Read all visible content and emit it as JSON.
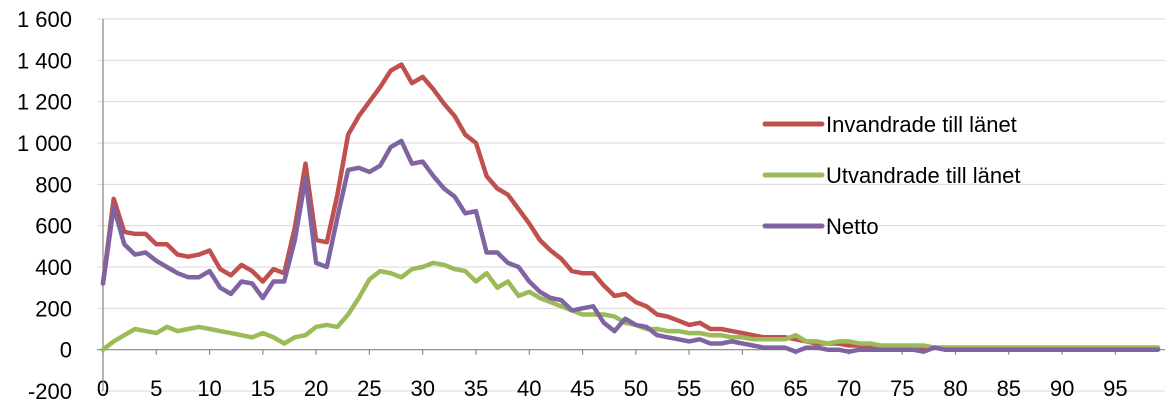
{
  "chart_data": {
    "type": "line",
    "title": "",
    "xlabel": "",
    "ylabel": "",
    "xlim": [
      0,
      99
    ],
    "ylim": [
      -200,
      1600
    ],
    "y_ticks": [
      -200,
      0,
      200,
      400,
      600,
      800,
      1000,
      1200,
      1400,
      1600
    ],
    "y_tick_labels": [
      "-200",
      "0",
      "200",
      "400",
      "600",
      "800",
      "1 000",
      "1 200",
      "1 400",
      "1 600"
    ],
    "x_ticks": [
      0,
      5,
      10,
      15,
      20,
      25,
      30,
      35,
      40,
      45,
      50,
      55,
      60,
      65,
      70,
      75,
      80,
      85,
      90,
      95
    ],
    "x_tick_labels": [
      "0",
      "5",
      "10",
      "15",
      "20",
      "25",
      "30",
      "35",
      "40",
      "45",
      "50",
      "55",
      "60",
      "65",
      "70",
      "75",
      "80",
      "85",
      "90",
      "95"
    ],
    "grid": true,
    "legend_position": "right",
    "x": [
      0,
      1,
      2,
      3,
      4,
      5,
      6,
      7,
      8,
      9,
      10,
      11,
      12,
      13,
      14,
      15,
      16,
      17,
      18,
      19,
      20,
      21,
      22,
      23,
      24,
      25,
      26,
      27,
      28,
      29,
      30,
      31,
      32,
      33,
      34,
      35,
      36,
      37,
      38,
      39,
      40,
      41,
      42,
      43,
      44,
      45,
      46,
      47,
      48,
      49,
      50,
      51,
      52,
      53,
      54,
      55,
      56,
      57,
      58,
      59,
      60,
      61,
      62,
      63,
      64,
      65,
      66,
      67,
      68,
      69,
      70,
      71,
      72,
      73,
      74,
      75,
      76,
      77,
      78,
      79,
      80,
      81,
      82,
      83,
      84,
      85,
      86,
      87,
      88,
      89,
      90,
      91,
      92,
      93,
      94,
      95,
      96,
      97,
      98,
      99
    ],
    "series": [
      {
        "name": "Invandrade till länet",
        "color": "#c0504d",
        "values": [
          320,
          730,
          570,
          560,
          560,
          510,
          510,
          460,
          450,
          460,
          480,
          390,
          360,
          410,
          380,
          330,
          390,
          370,
          590,
          900,
          530,
          520,
          750,
          1040,
          1130,
          1200,
          1270,
          1350,
          1380,
          1290,
          1320,
          1260,
          1190,
          1130,
          1040,
          1000,
          840,
          780,
          750,
          680,
          610,
          530,
          480,
          440,
          380,
          370,
          370,
          310,
          260,
          270,
          230,
          210,
          170,
          160,
          140,
          120,
          130,
          100,
          100,
          90,
          80,
          70,
          60,
          60,
          60,
          50,
          40,
          30,
          30,
          30,
          20,
          20,
          20,
          10,
          10,
          10,
          10,
          10,
          10,
          10,
          10,
          10,
          10,
          10,
          10,
          10,
          10,
          10,
          10,
          10,
          10,
          10,
          10,
          10,
          10,
          10,
          10,
          10,
          10,
          10
        ],
        "label_x": 826
      },
      {
        "name": "Utvandrade till länet",
        "color": "#9bbb59",
        "values": [
          0,
          40,
          70,
          100,
          90,
          80,
          110,
          90,
          100,
          110,
          100,
          90,
          80,
          70,
          60,
          80,
          60,
          30,
          60,
          70,
          110,
          120,
          110,
          170,
          250,
          340,
          380,
          370,
          350,
          390,
          400,
          420,
          410,
          390,
          380,
          330,
          370,
          300,
          330,
          260,
          280,
          250,
          230,
          210,
          190,
          170,
          170,
          170,
          160,
          130,
          120,
          100,
          100,
          90,
          90,
          80,
          80,
          70,
          70,
          60,
          60,
          50,
          50,
          50,
          50,
          70,
          40,
          40,
          30,
          40,
          40,
          30,
          30,
          20,
          20,
          20,
          20,
          20,
          10,
          10,
          10,
          10,
          10,
          10,
          10,
          10,
          10,
          10,
          10,
          10,
          10,
          10,
          10,
          10,
          10,
          10,
          10,
          10,
          10,
          10
        ],
        "label_x": 826
      },
      {
        "name": "Netto",
        "color": "#8064a2",
        "values": [
          320,
          690,
          510,
          460,
          470,
          430,
          400,
          370,
          350,
          350,
          380,
          300,
          270,
          330,
          320,
          250,
          330,
          330,
          530,
          830,
          420,
          400,
          640,
          870,
          880,
          860,
          890,
          980,
          1010,
          900,
          910,
          840,
          780,
          740,
          660,
          670,
          470,
          470,
          420,
          400,
          330,
          280,
          250,
          240,
          190,
          200,
          210,
          130,
          90,
          150,
          120,
          110,
          70,
          60,
          50,
          40,
          50,
          30,
          30,
          40,
          30,
          20,
          10,
          10,
          10,
          -10,
          10,
          10,
          0,
          0,
          -10,
          0,
          0,
          0,
          0,
          0,
          0,
          -10,
          10,
          0,
          0,
          0,
          0,
          0,
          0,
          0,
          0,
          0,
          0,
          0,
          0,
          0,
          0,
          0,
          0,
          0,
          0,
          0,
          0,
          0
        ],
        "label_x": 826
      }
    ]
  }
}
